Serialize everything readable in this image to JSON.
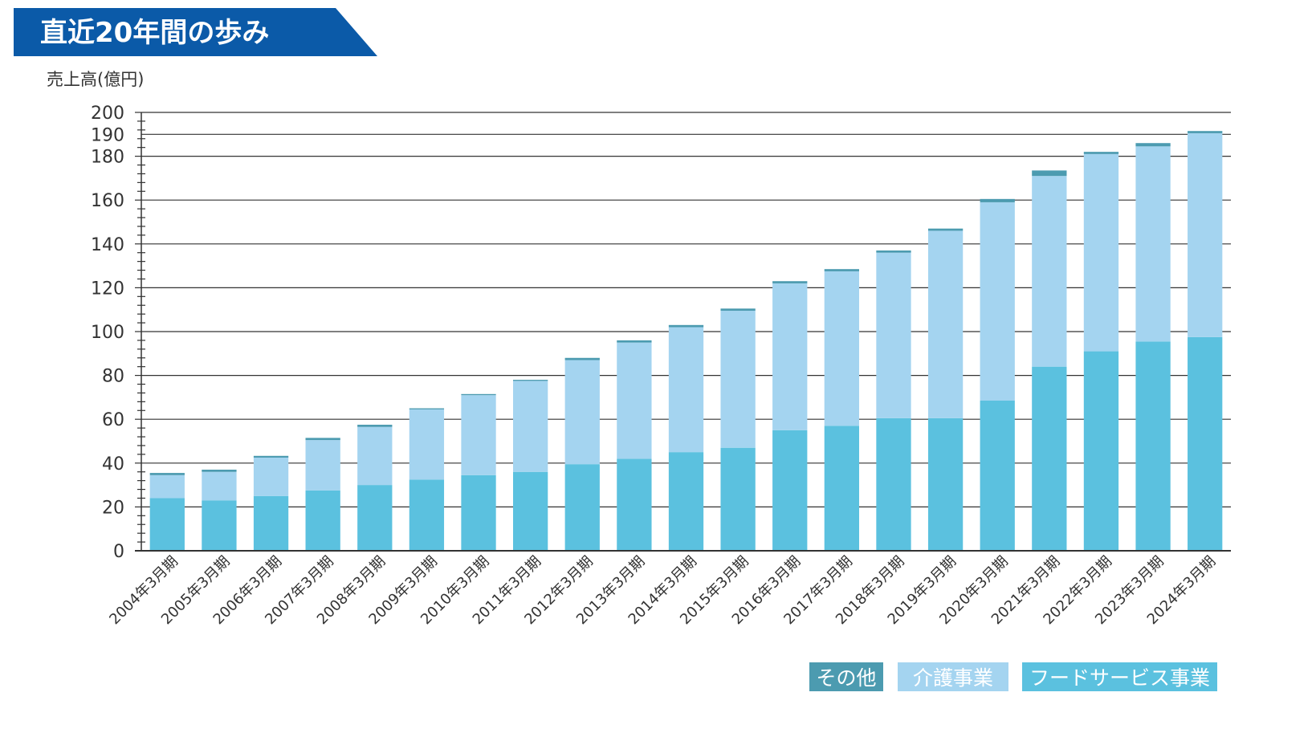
{
  "header": {
    "title": "直近20年間の歩み"
  },
  "colors": {
    "banner": "#0b5aa8",
    "food": "#5bc1df",
    "care": "#a4d4f0",
    "other": "#4c9bb0",
    "grid": "#333333",
    "text": "#333333"
  },
  "chart_data": {
    "type": "bar",
    "stacked": true,
    "title": "直近20年間の歩み",
    "ylabel": "売上高(億円)",
    "xlabel": "",
    "ylim": [
      0,
      200
    ],
    "yticks": [
      0,
      20,
      40,
      60,
      80,
      100,
      120,
      140,
      160,
      180,
      190,
      200
    ],
    "grid": true,
    "legend_position": "bottom-right",
    "categories": [
      "2004年3月期",
      "2005年3月期",
      "2006年3月期",
      "2007年3月期",
      "2008年3月期",
      "2009年3月期",
      "2010年3月期",
      "2011年3月期",
      "2012年3月期",
      "2013年3月期",
      "2014年3月期",
      "2015年3月期",
      "2016年3月期",
      "2017年3月期",
      "2018年3月期",
      "2019年3月期",
      "2020年3月期",
      "2021年3月期",
      "2022年3月期",
      "2023年3月期",
      "2024年3月期"
    ],
    "series": [
      {
        "name": "フードサービス事業",
        "color": "#5bc1df",
        "values": [
          24,
          23,
          25,
          27.5,
          30,
          32.5,
          34.5,
          36,
          39.5,
          42,
          45,
          47,
          55,
          57,
          60.5,
          60.5,
          68.5,
          84,
          91,
          95.5,
          97.5
        ]
      },
      {
        "name": "介護事業",
        "color": "#a4d4f0",
        "values": [
          10.5,
          13,
          17.5,
          23,
          26.5,
          32,
          36.5,
          41.5,
          47.5,
          53,
          57,
          62.5,
          67,
          70.5,
          75.5,
          85.5,
          90.5,
          87,
          90,
          89,
          93
        ]
      },
      {
        "name": "その他",
        "color": "#4c9bb0",
        "values": [
          1,
          1,
          0.8,
          1,
          1,
          0.5,
          0.5,
          0.5,
          1,
          1,
          1,
          1,
          1,
          1,
          1,
          1,
          1.5,
          2.5,
          1,
          1.5,
          1
        ]
      }
    ]
  },
  "legend": [
    {
      "label": "その他",
      "color": "#4c9bb0"
    },
    {
      "label": "介護事業",
      "color": "#a4d4f0"
    },
    {
      "label": "フードサービス事業",
      "color": "#5bc1df"
    }
  ]
}
